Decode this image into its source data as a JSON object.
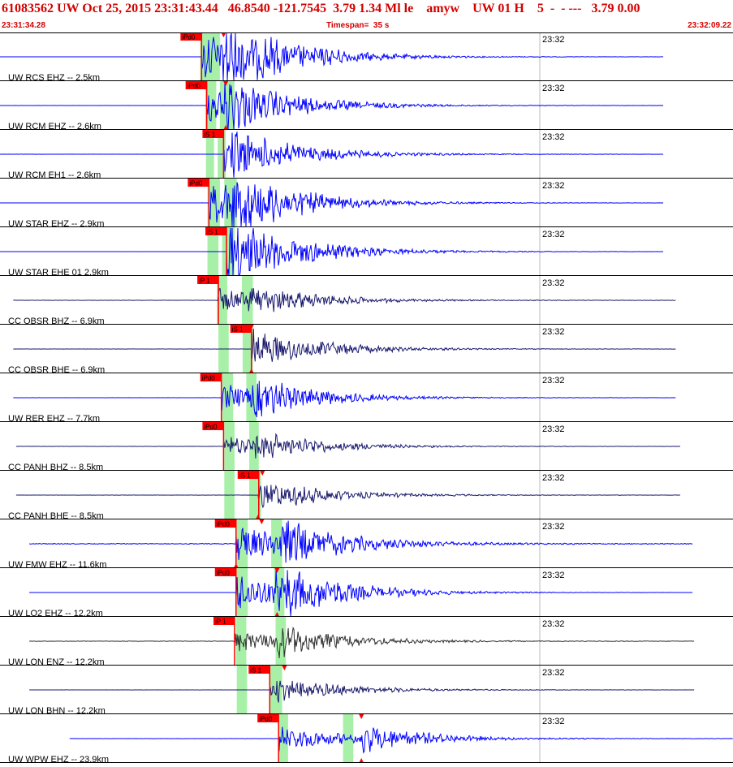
{
  "header": {
    "title": "61083562 UW Oct 25, 2015 23:31:43.44   46.8540 -121.7545  3.79 1.34 Ml le    amyw    UW 01 H    5  -  - ---   3.79 0.00",
    "start_time": "23:31:34.28",
    "timespan": "Timespan=  35 s",
    "end_time": "23:32:09.22"
  },
  "tick_label": "23:32",
  "colors": {
    "header_text": "#d40000",
    "trace_blue": "#0000ff",
    "trace_navy": "#1a1a6e",
    "trace_dark": "#333333",
    "pick_red": "#ff0000",
    "window_green": "#a8f0a8"
  },
  "traces": [
    {
      "label": "UW RCS EHZ -- 2.5km",
      "pick": "iPd0",
      "color": "trace_blue",
      "pick_pos": 0.275,
      "s_pos": 0.305,
      "green": [
        [
          0.273,
          0.3
        ]
      ],
      "amp": 1.0,
      "noise": 0.02,
      "start": 0.0,
      "end": 0.905,
      "tri_top": 0.305,
      "tri_bot": null
    },
    {
      "label": "UW RCM EHZ -- 2.6km",
      "pick": "iPd0",
      "color": "trace_blue",
      "pick_pos": 0.282,
      "s_pos": 0.308,
      "green": [
        [
          0.28,
          0.295
        ],
        [
          0.3,
          0.32
        ]
      ],
      "amp": 0.7,
      "noise": 0.03,
      "start": 0.0,
      "end": 0.905,
      "tri_top": 0.308,
      "tri_bot": 0.308
    },
    {
      "label": "UW RCM EH1 -- 2.6km",
      "pick": "iS 1",
      "color": "trace_blue",
      "pick_pos": 0.305,
      "s_pos": 0.305,
      "green": [
        [
          0.281,
          0.292
        ],
        [
          0.297,
          0.308
        ]
      ],
      "amp": 0.6,
      "noise": 0.03,
      "start": 0.0,
      "end": 0.905,
      "tri_top": null,
      "tri_bot": null
    },
    {
      "label": "UW STAR EHZ -- 2.9km",
      "pick": "iPd0",
      "color": "trace_blue",
      "pick_pos": 0.285,
      "s_pos": 0.318,
      "green": [
        [
          0.283,
          0.3
        ],
        [
          0.306,
          0.323
        ]
      ],
      "amp": 0.85,
      "noise": 0.02,
      "start": 0.0,
      "end": 0.905,
      "tri_top": null,
      "tri_bot": null
    },
    {
      "label": "UW STAR EHE 01 2.9km",
      "pick": "iS 1",
      "color": "trace_blue",
      "pick_pos": 0.309,
      "s_pos": 0.309,
      "green": [
        [
          0.283,
          0.298
        ],
        [
          0.303,
          0.32
        ]
      ],
      "amp": 0.8,
      "noise": 0.02,
      "start": 0.0,
      "end": 0.905,
      "tri_top": null,
      "tri_bot": null
    },
    {
      "label": "CC OBSR BHZ -- 6.9km",
      "pick": "iP 1",
      "color": "trace_navy",
      "pick_pos": 0.298,
      "s_pos": 0.34,
      "green": [
        [
          0.296,
          0.31
        ],
        [
          0.33,
          0.345
        ]
      ],
      "amp": 0.45,
      "noise": 0.08,
      "start": 0.018,
      "end": 0.922,
      "tri_top": null,
      "tri_bot": null
    },
    {
      "label": "CC OBSR BHE -- 6.9km",
      "pick": "iS 1",
      "color": "trace_navy",
      "pick_pos": 0.343,
      "s_pos": 0.343,
      "green": [
        [
          0.298,
          0.312
        ],
        [
          0.331,
          0.345
        ]
      ],
      "amp": 0.45,
      "noise": 0.05,
      "start": 0.018,
      "end": 0.922,
      "tri_top": 0.343,
      "tri_bot": 0.343
    },
    {
      "label": "UW RER EHZ -- 7.7km",
      "pick": "iPd0",
      "color": "trace_blue",
      "pick_pos": 0.302,
      "s_pos": 0.345,
      "green": [
        [
          0.303,
          0.318
        ],
        [
          0.336,
          0.35
        ]
      ],
      "amp": 0.55,
      "noise": 0.03,
      "start": 0.018,
      "end": 0.922,
      "tri_top": null,
      "tri_bot": null
    },
    {
      "label": "CC PANH BHZ -- 8.5km",
      "pick": "iPd0",
      "color": "trace_navy",
      "pick_pos": 0.305,
      "s_pos": 0.35,
      "green": [
        [
          0.306,
          0.32
        ],
        [
          0.34,
          0.353
        ]
      ],
      "amp": 0.4,
      "noise": 0.05,
      "start": 0.022,
      "end": 0.928,
      "tri_top": null,
      "tri_bot": null
    },
    {
      "label": "CC PANH BHE -- 8.5km",
      "pick": "iS 1",
      "color": "trace_navy",
      "pick_pos": 0.353,
      "s_pos": 0.353,
      "green": [
        [
          0.306,
          0.32
        ],
        [
          0.34,
          0.356
        ]
      ],
      "amp": 0.35,
      "noise": 0.05,
      "start": 0.022,
      "end": 0.928,
      "tri_top": 0.358,
      "tri_bot": 0.352
    },
    {
      "label": "UW FMW EHZ -- 11.6km",
      "pick": "iPd0",
      "color": "trace_blue",
      "pick_pos": 0.322,
      "s_pos": 0.384,
      "green": [
        [
          0.323,
          0.338
        ],
        [
          0.37,
          0.385
        ]
      ],
      "amp": 0.7,
      "noise": 0.2,
      "start": 0.04,
      "end": 0.945,
      "tri_top": 0.357,
      "tri_bot": 0.322
    },
    {
      "label": "UW LO2 EHZ -- 12.2km",
      "pick": "iPd0",
      "color": "trace_blue",
      "pick_pos": 0.322,
      "s_pos": 0.378,
      "green": [
        [
          0.323,
          0.338
        ],
        [
          0.374,
          0.388
        ]
      ],
      "amp": 0.8,
      "noise": 0.01,
      "start": 0.04,
      "end": 0.945,
      "tri_top": 0.378,
      "tri_bot": 0.378
    },
    {
      "label": "UW LON ENZ -- 12.2km",
      "pick": "iP 1",
      "color": "trace_dark",
      "pick_pos": 0.32,
      "s_pos": 0.38,
      "green": [
        [
          0.322,
          0.336
        ],
        [
          0.376,
          0.39
        ]
      ],
      "amp": 0.45,
      "noise": 0.12,
      "start": 0.04,
      "end": 0.948,
      "tri_top": null,
      "tri_bot": null
    },
    {
      "label": "UW LON BHN -- 12.2km",
      "pick": "iS 1",
      "color": "trace_navy",
      "pick_pos": 0.368,
      "s_pos": 0.368,
      "green": [
        [
          0.323,
          0.337
        ],
        [
          0.368,
          0.385
        ]
      ],
      "amp": 0.3,
      "noise": 0.03,
      "start": 0.04,
      "end": 0.948,
      "tri_top": 0.388,
      "tri_bot": null
    },
    {
      "label": "UW WPW EHZ -- 23.9km",
      "pick": "iPd0",
      "color": "trace_blue",
      "pick_pos": 0.38,
      "s_pos": 0.493,
      "green": [
        [
          0.38,
          0.393
        ],
        [
          0.468,
          0.482
        ]
      ],
      "amp": 0.5,
      "noise": 0.05,
      "start": 0.095,
      "end": 1.0,
      "tri_top": 0.493,
      "tri_bot": 0.493
    }
  ]
}
